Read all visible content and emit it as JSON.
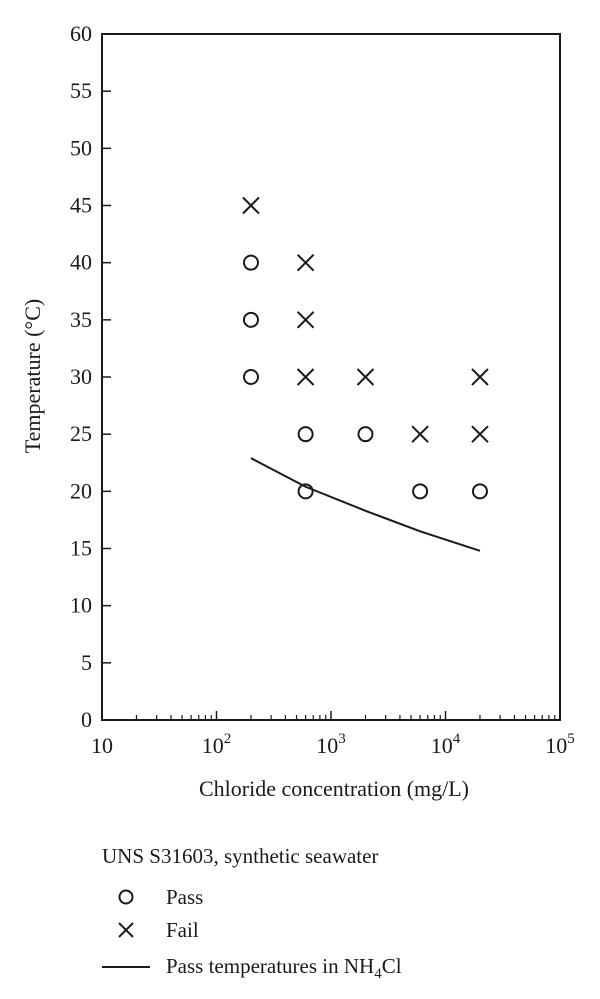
{
  "chart_data": {
    "type": "scatter",
    "x_scale": "log",
    "xlim": [
      10,
      100000
    ],
    "ylim": [
      0,
      60
    ],
    "xlabel": "Chloride concentration (mg/L)",
    "ylabel": "Temperature (°C)",
    "x_ticks": [
      {
        "value": 10,
        "label": "10"
      },
      {
        "value": 100,
        "base": "10",
        "exp": "2"
      },
      {
        "value": 1000,
        "base": "10",
        "exp": "3"
      },
      {
        "value": 10000,
        "base": "10",
        "exp": "4"
      },
      {
        "value": 100000,
        "base": "10",
        "exp": "5"
      }
    ],
    "y_ticks": [
      0,
      5,
      10,
      15,
      20,
      25,
      30,
      35,
      40,
      45,
      50,
      55,
      60
    ],
    "grid": false,
    "legend_position": "bottom",
    "legend_title": "UNS S31603, synthetic seawater",
    "series": [
      {
        "name": "Pass",
        "marker": "circle",
        "points": [
          {
            "x": 200,
            "y": 30
          },
          {
            "x": 200,
            "y": 35
          },
          {
            "x": 200,
            "y": 40
          },
          {
            "x": 600,
            "y": 20
          },
          {
            "x": 600,
            "y": 25
          },
          {
            "x": 2000,
            "y": 25
          },
          {
            "x": 6000,
            "y": 20
          },
          {
            "x": 20000,
            "y": 20
          }
        ]
      },
      {
        "name": "Fail",
        "marker": "x",
        "points": [
          {
            "x": 200,
            "y": 45
          },
          {
            "x": 600,
            "y": 30
          },
          {
            "x": 600,
            "y": 35
          },
          {
            "x": 600,
            "y": 40
          },
          {
            "x": 2000,
            "y": 30
          },
          {
            "x": 6000,
            "y": 25
          },
          {
            "x": 20000,
            "y": 25
          },
          {
            "x": 20000,
            "y": 30
          }
        ]
      },
      {
        "name": "Pass temperatures in NH4Cl",
        "label_parts": {
          "before": "Pass temperatures in NH",
          "sub": "4",
          "after": "Cl"
        },
        "marker": "line",
        "points": [
          {
            "x": 200,
            "y": 22.9
          },
          {
            "x": 600,
            "y": 20.4
          },
          {
            "x": 2000,
            "y": 18.3
          },
          {
            "x": 6000,
            "y": 16.5
          },
          {
            "x": 20000,
            "y": 14.8
          }
        ]
      }
    ]
  }
}
